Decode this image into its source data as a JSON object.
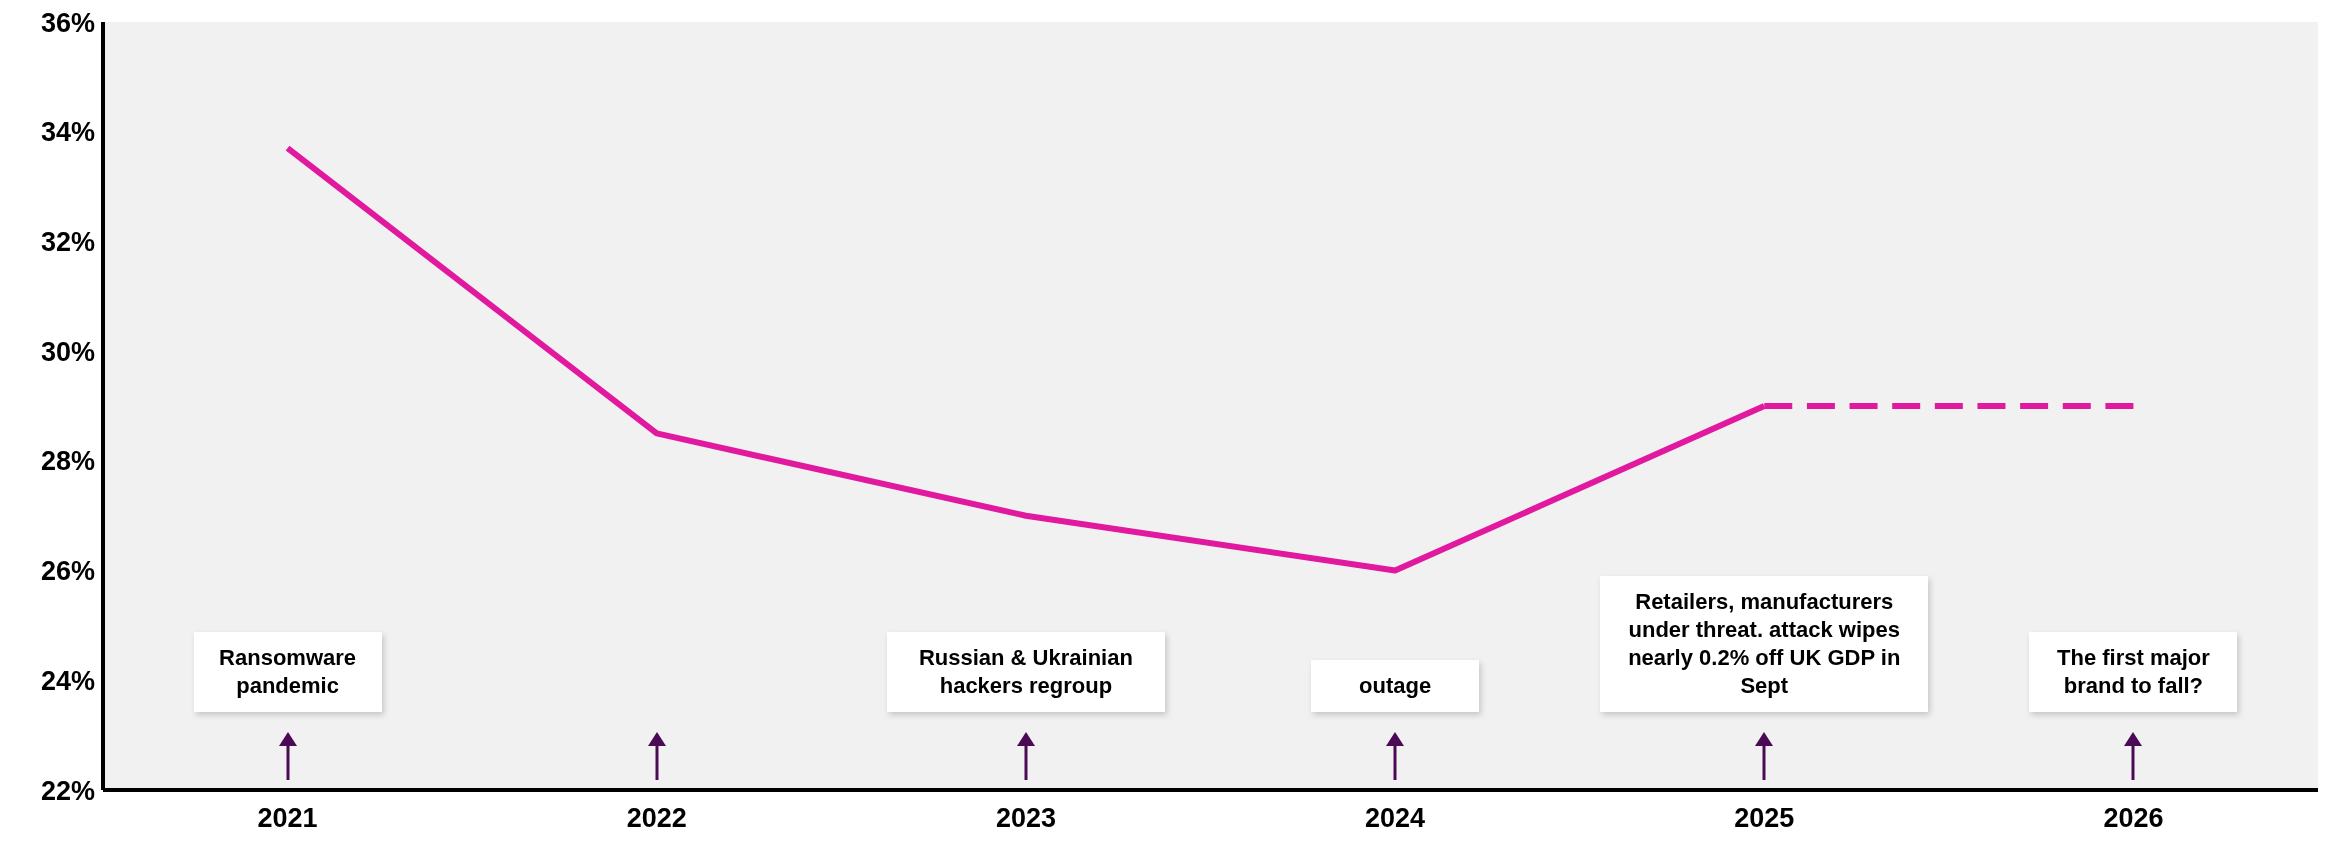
{
  "chart_data": {
    "type": "line",
    "categories": [
      "2021",
      "2022",
      "2023",
      "2024",
      "2025",
      "2026"
    ],
    "series": [
      {
        "color": "#e0199f",
        "line_style": "solid",
        "values": [
          33.7,
          28.5,
          27.0,
          26.0,
          29.0,
          null
        ]
      },
      {
        "color": "#e0199f",
        "line_style": "dashed",
        "values": [
          null,
          null,
          null,
          null,
          29.0,
          29.0
        ]
      }
    ],
    "ylim": [
      22,
      36
    ],
    "yticks": [
      {
        "value": 22,
        "label": "22%"
      },
      {
        "value": 24,
        "label": "24%"
      },
      {
        "value": 26,
        "label": "26%"
      },
      {
        "value": 28,
        "label": "28%"
      },
      {
        "value": 30,
        "label": "30%"
      },
      {
        "value": 32,
        "label": "32%"
      },
      {
        "value": 34,
        "label": "34%"
      },
      {
        "value": 36,
        "label": "36%"
      }
    ],
    "grid": false,
    "legend": false,
    "marker": "none",
    "annotations": [
      "Ransomware pandemic",
      "Russian & Ukrainian hackers regroup",
      "outage",
      "Retailers, manufacturers under threat. attack wipes nearly 0.2% off UK GDP in Sept",
      "The first major brand to fall?"
    ]
  }
}
